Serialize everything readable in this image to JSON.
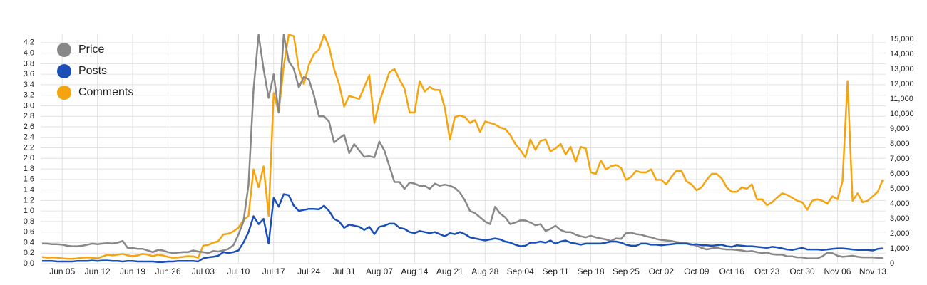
{
  "chart_data": {
    "type": "line",
    "categories": [
      null,
      null,
      null,
      null,
      "Jun 05",
      null,
      null,
      null,
      null,
      null,
      null,
      "Jun 12",
      null,
      null,
      null,
      null,
      null,
      null,
      "Jun 19",
      null,
      null,
      null,
      null,
      null,
      null,
      "Jun 26",
      null,
      null,
      null,
      null,
      null,
      null,
      "Jul 03",
      null,
      null,
      null,
      null,
      null,
      null,
      "Jul 10",
      null,
      null,
      null,
      null,
      null,
      null,
      "Jul 17",
      null,
      null,
      null,
      null,
      null,
      null,
      "Jul 24",
      null,
      null,
      null,
      null,
      null,
      null,
      "Jul 31",
      null,
      null,
      null,
      null,
      null,
      null,
      "Aug 07",
      null,
      null,
      null,
      null,
      null,
      null,
      "Aug 14",
      null,
      null,
      null,
      null,
      null,
      null,
      "Aug 21",
      null,
      null,
      null,
      null,
      null,
      null,
      "Aug 28",
      null,
      null,
      null,
      null,
      null,
      null,
      "Sep 04",
      null,
      null,
      null,
      null,
      null,
      null,
      "Sep 11",
      null,
      null,
      null,
      null,
      null,
      null,
      "Sep 18",
      null,
      null,
      null,
      null,
      null,
      null,
      "Sep 25",
      null,
      null,
      null,
      null,
      null,
      null,
      "Oct 02",
      null,
      null,
      null,
      null,
      null,
      null,
      "Oct 09",
      null,
      null,
      null,
      null,
      null,
      null,
      "Oct 16",
      null,
      null,
      null,
      null,
      null,
      null,
      "Oct 23",
      null,
      null,
      null,
      null,
      null,
      null,
      "Oct 30",
      null,
      null,
      null,
      null,
      null,
      null,
      "Nov 06",
      null,
      null,
      null,
      null,
      null,
      null,
      "Nov 13",
      null,
      null
    ],
    "series": [
      {
        "name": "Price",
        "color": "#888888",
        "values": [
          0.38,
          0.38,
          0.37,
          0.37,
          0.36,
          0.34,
          0.33,
          0.33,
          0.34,
          0.36,
          0.38,
          0.37,
          0.38,
          0.39,
          0.38,
          0.4,
          0.43,
          0.3,
          0.3,
          0.28,
          0.28,
          0.25,
          0.22,
          0.26,
          0.25,
          0.22,
          0.2,
          0.21,
          0.22,
          0.22,
          0.25,
          0.23,
          0.22,
          0.2,
          0.24,
          0.23,
          0.25,
          0.28,
          0.35,
          0.55,
          0.8,
          1.5,
          3.3,
          4.35,
          3.7,
          3.15,
          3.6,
          2.87,
          4.35,
          3.85,
          3.7,
          3.35,
          3.55,
          3.5,
          3.2,
          2.8,
          2.8,
          2.7,
          2.3,
          2.38,
          2.45,
          2.1,
          2.27,
          2.15,
          2.03,
          2.04,
          2.02,
          2.32,
          2.15,
          1.85,
          1.55,
          1.55,
          1.42,
          1.54,
          1.52,
          1.48,
          1.48,
          1.42,
          1.52,
          1.48,
          1.5,
          1.48,
          1.44,
          1.35,
          1.2,
          1.0,
          0.96,
          0.88,
          0.8,
          0.75,
          1.08,
          0.95,
          0.88,
          0.75,
          0.78,
          0.82,
          0.82,
          0.78,
          0.73,
          0.75,
          0.62,
          0.66,
          0.72,
          0.64,
          0.6,
          0.6,
          0.55,
          0.52,
          0.5,
          0.53,
          0.5,
          0.48,
          0.46,
          0.43,
          0.48,
          0.47,
          0.58,
          0.59,
          0.56,
          0.55,
          0.52,
          0.5,
          0.47,
          0.45,
          0.44,
          0.43,
          0.41,
          0.4,
          0.39,
          0.37,
          0.34,
          0.3,
          0.27,
          0.29,
          0.3,
          0.28,
          0.27,
          0.27,
          0.26,
          0.25,
          0.23,
          0.24,
          0.22,
          0.2,
          0.21,
          0.18,
          0.17,
          0.17,
          0.14,
          0.14,
          0.12,
          0.12,
          0.1,
          0.1,
          0.1,
          0.14,
          0.21,
          0.2,
          0.15,
          0.13,
          0.14,
          0.15,
          0.13,
          0.12,
          0.12,
          0.12,
          0.11,
          0.11
        ]
      },
      {
        "name": "Posts",
        "color": "#1a4fb8",
        "values": [
          0.05,
          0.05,
          0.05,
          0.04,
          0.04,
          0.04,
          0.04,
          0.05,
          0.05,
          0.05,
          0.06,
          0.05,
          0.06,
          0.06,
          0.05,
          0.05,
          0.04,
          0.05,
          0.05,
          0.04,
          0.04,
          0.04,
          0.04,
          0.03,
          0.03,
          0.04,
          0.04,
          0.05,
          0.05,
          0.05,
          0.05,
          0.04,
          0.1,
          0.12,
          0.13,
          0.15,
          0.22,
          0.2,
          0.22,
          0.25,
          0.4,
          0.6,
          0.9,
          0.75,
          0.85,
          0.38,
          1.25,
          1.08,
          1.32,
          1.3,
          1.1,
          1.0,
          1.02,
          1.04,
          1.04,
          1.03,
          1.1,
          1.0,
          0.85,
          0.8,
          0.68,
          0.74,
          0.72,
          0.7,
          0.64,
          0.7,
          0.56,
          0.7,
          0.72,
          0.76,
          0.76,
          0.68,
          0.66,
          0.6,
          0.58,
          0.62,
          0.6,
          0.58,
          0.6,
          0.56,
          0.52,
          0.58,
          0.56,
          0.6,
          0.56,
          0.5,
          0.48,
          0.46,
          0.44,
          0.46,
          0.48,
          0.46,
          0.42,
          0.4,
          0.36,
          0.33,
          0.34,
          0.4,
          0.4,
          0.42,
          0.4,
          0.44,
          0.38,
          0.42,
          0.44,
          0.4,
          0.38,
          0.36,
          0.38,
          0.38,
          0.38,
          0.38,
          0.4,
          0.42,
          0.42,
          0.4,
          0.36,
          0.34,
          0.34,
          0.38,
          0.38,
          0.36,
          0.36,
          0.35,
          0.36,
          0.37,
          0.38,
          0.38,
          0.38,
          0.36,
          0.37,
          0.35,
          0.35,
          0.34,
          0.35,
          0.36,
          0.33,
          0.32,
          0.35,
          0.34,
          0.33,
          0.33,
          0.32,
          0.31,
          0.3,
          0.32,
          0.31,
          0.29,
          0.27,
          0.26,
          0.28,
          0.3,
          0.27,
          0.27,
          0.27,
          0.26,
          0.27,
          0.28,
          0.29,
          0.29,
          0.28,
          0.27,
          0.26,
          0.26,
          0.26,
          0.25,
          0.28,
          0.29
        ]
      },
      {
        "name": "Comments",
        "color": "#f5a40f",
        "axis": "y2",
        "values": [
          450,
          400,
          420,
          400,
          350,
          330,
          320,
          350,
          400,
          420,
          400,
          350,
          480,
          600,
          550,
          600,
          650,
          550,
          500,
          550,
          650,
          600,
          500,
          600,
          550,
          450,
          400,
          420,
          450,
          500,
          480,
          400,
          1200,
          1250,
          1400,
          1500,
          1950,
          2000,
          2150,
          2400,
          2900,
          3200,
          6300,
          5100,
          6500,
          3200,
          11400,
          10100,
          13200,
          15300,
          15200,
          13000,
          12000,
          13300,
          14000,
          14300,
          15300,
          14500,
          13000,
          12000,
          10500,
          11200,
          11100,
          11000,
          11800,
          12600,
          9400,
          10800,
          11800,
          12800,
          13000,
          12300,
          11700,
          10100,
          10100,
          12200,
          11500,
          11800,
          11600,
          11600,
          10400,
          8300,
          9800,
          9900,
          9800,
          9400,
          9600,
          8800,
          9500,
          9400,
          9300,
          9100,
          9000,
          8600,
          8000,
          7600,
          7100,
          8300,
          7600,
          8200,
          8300,
          7500,
          7700,
          8000,
          7300,
          7800,
          6800,
          7800,
          7700,
          6100,
          6000,
          6900,
          6300,
          6500,
          6600,
          6400,
          5600,
          5800,
          6200,
          6100,
          6100,
          6300,
          5600,
          5600,
          5300,
          5800,
          6200,
          6200,
          5500,
          5300,
          4900,
          5100,
          5600,
          6000,
          6000,
          5700,
          5100,
          4800,
          4800,
          5100,
          5000,
          5300,
          4300,
          4300,
          3900,
          4100,
          4400,
          4700,
          4600,
          4400,
          4200,
          4100,
          3600,
          4200,
          4300,
          4200,
          4000,
          4500,
          4300,
          5500,
          12200,
          4200,
          4700,
          4100,
          4200,
          4500,
          4800,
          5600
        ]
      }
    ],
    "ylim": [
      0,
      4.36
    ],
    "yticks": [
      {
        "value": 0,
        "label": "0.0"
      },
      0.2,
      0.4,
      0.6,
      0.8,
      {
        "value": 1,
        "label": "1.0"
      },
      1.2,
      1.4,
      1.6,
      1.8,
      {
        "value": 2,
        "label": "2.0"
      },
      2.2,
      2.4,
      2.6,
      2.8,
      {
        "value": 3,
        "label": "3.0"
      },
      3.2,
      3.4,
      3.6,
      3.8,
      {
        "value": 4,
        "label": "4.0"
      },
      4.2
    ],
    "y2lim": [
      0,
      15330
    ],
    "y2ticks": [
      0,
      {
        "value": 1000,
        "label": "1,000"
      },
      {
        "value": 2000,
        "label": "2,000"
      },
      {
        "value": 3000,
        "label": "3,000"
      },
      {
        "value": 4000,
        "label": "4,000"
      },
      {
        "value": 5000,
        "label": "5,000"
      },
      {
        "value": 6000,
        "label": "6,000"
      },
      {
        "value": 7000,
        "label": "7,000"
      },
      {
        "value": 8000,
        "label": "8,000"
      },
      {
        "value": 9000,
        "label": "9,000"
      },
      {
        "value": 10000,
        "label": "10,000"
      },
      {
        "value": 11000,
        "label": "11,000"
      },
      {
        "value": 12000,
        "label": "12,000"
      },
      {
        "value": 13000,
        "label": "13,000"
      },
      {
        "value": 14000,
        "label": "14,000"
      },
      {
        "value": 15000,
        "label": "15,000"
      }
    ],
    "grid": true,
    "legend": "top-left"
  }
}
